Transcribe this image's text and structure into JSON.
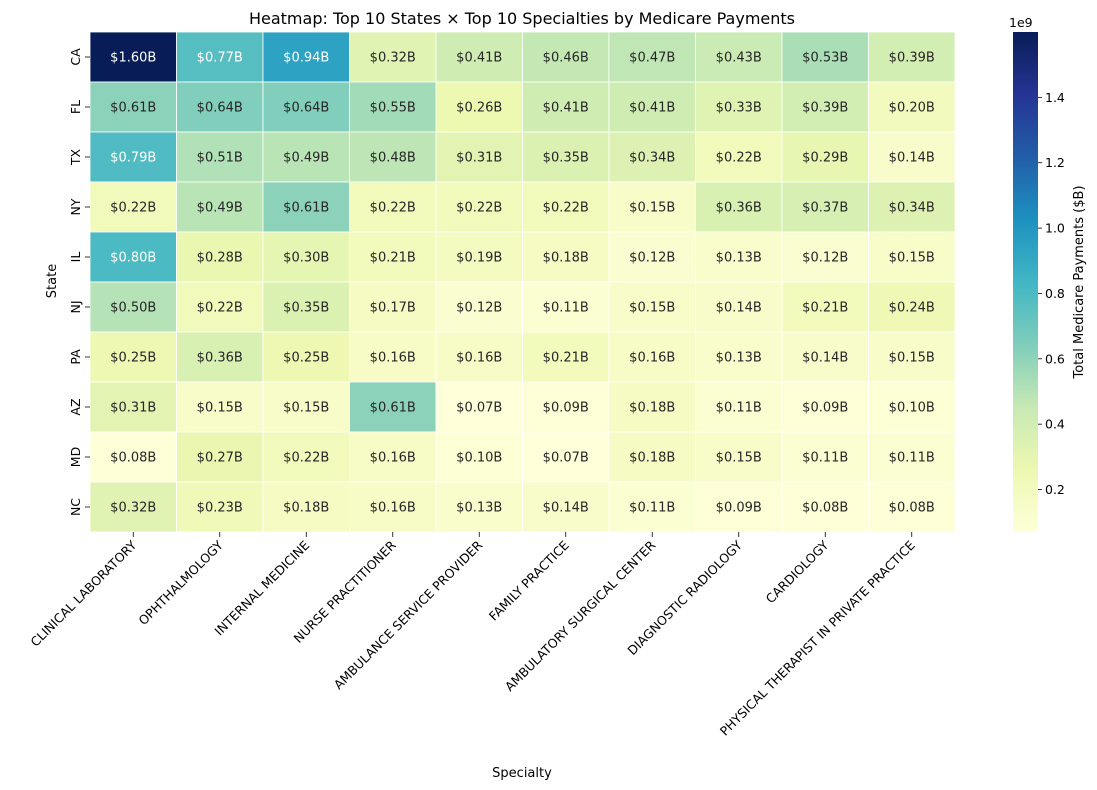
{
  "chart_data": {
    "type": "heatmap",
    "title": "Heatmap: Top 10 States × Top 10 Specialties by Medicare Payments",
    "xlabel": "Specialty",
    "ylabel": "State",
    "colorbar_label": "Total Medicare Payments ($B)",
    "colorbar_offset": "1e9",
    "colorbar_ticks": [
      0.2,
      0.4,
      0.6,
      0.8,
      1.0,
      1.2,
      1.4
    ],
    "colorbar_tick_labels": [
      "0.2",
      "0.4",
      "0.6",
      "0.8",
      "1.0",
      "1.2",
      "1.4"
    ],
    "value_range": [
      0.07,
      1.6
    ],
    "colormap": "YlGnBu",
    "x_categories": [
      "CLINICAL LABORATORY",
      "OPHTHALMOLOGY",
      "INTERNAL MEDICINE",
      "NURSE PRACTITIONER",
      "AMBULANCE SERVICE PROVIDER",
      "FAMILY PRACTICE",
      "AMBULATORY SURGICAL CENTER",
      "DIAGNOSTIC RADIOLOGY",
      "CARDIOLOGY",
      "PHYSICAL THERAPIST IN PRIVATE PRACTICE"
    ],
    "y_categories": [
      "CA",
      "FL",
      "TX",
      "NY",
      "IL",
      "NJ",
      "PA",
      "AZ",
      "MD",
      "NC"
    ],
    "values": [
      [
        1.6,
        0.77,
        0.94,
        0.32,
        0.41,
        0.46,
        0.47,
        0.43,
        0.53,
        0.39
      ],
      [
        0.61,
        0.64,
        0.64,
        0.55,
        0.26,
        0.41,
        0.41,
        0.33,
        0.39,
        0.2
      ],
      [
        0.79,
        0.51,
        0.49,
        0.48,
        0.31,
        0.35,
        0.34,
        0.22,
        0.29,
        0.14
      ],
      [
        0.22,
        0.49,
        0.61,
        0.22,
        0.22,
        0.22,
        0.15,
        0.36,
        0.37,
        0.34
      ],
      [
        0.8,
        0.28,
        0.3,
        0.21,
        0.19,
        0.18,
        0.12,
        0.13,
        0.12,
        0.15
      ],
      [
        0.5,
        0.22,
        0.35,
        0.17,
        0.12,
        0.11,
        0.15,
        0.14,
        0.21,
        0.24
      ],
      [
        0.25,
        0.36,
        0.25,
        0.16,
        0.16,
        0.21,
        0.16,
        0.13,
        0.14,
        0.15
      ],
      [
        0.31,
        0.15,
        0.15,
        0.61,
        0.07,
        0.09,
        0.18,
        0.11,
        0.09,
        0.1
      ],
      [
        0.08,
        0.27,
        0.22,
        0.16,
        0.1,
        0.07,
        0.18,
        0.15,
        0.11,
        0.11
      ],
      [
        0.32,
        0.23,
        0.18,
        0.16,
        0.13,
        0.14,
        0.11,
        0.09,
        0.08,
        0.08
      ]
    ],
    "cell_labels": [
      [
        "$1.60B",
        "$0.77B",
        "$0.94B",
        "$0.32B",
        "$0.41B",
        "$0.46B",
        "$0.47B",
        "$0.43B",
        "$0.53B",
        "$0.39B"
      ],
      [
        "$0.61B",
        "$0.64B",
        "$0.64B",
        "$0.55B",
        "$0.26B",
        "$0.41B",
        "$0.41B",
        "$0.33B",
        "$0.39B",
        "$0.20B"
      ],
      [
        "$0.79B",
        "$0.51B",
        "$0.49B",
        "$0.48B",
        "$0.31B",
        "$0.35B",
        "$0.34B",
        "$0.22B",
        "$0.29B",
        "$0.14B"
      ],
      [
        "$0.22B",
        "$0.49B",
        "$0.61B",
        "$0.22B",
        "$0.22B",
        "$0.22B",
        "$0.15B",
        "$0.36B",
        "$0.37B",
        "$0.34B"
      ],
      [
        "$0.80B",
        "$0.28B",
        "$0.30B",
        "$0.21B",
        "$0.19B",
        "$0.18B",
        "$0.12B",
        "$0.13B",
        "$0.12B",
        "$0.15B"
      ],
      [
        "$0.50B",
        "$0.22B",
        "$0.35B",
        "$0.17B",
        "$0.12B",
        "$0.11B",
        "$0.15B",
        "$0.14B",
        "$0.21B",
        "$0.24B"
      ],
      [
        "$0.25B",
        "$0.36B",
        "$0.25B",
        "$0.16B",
        "$0.16B",
        "$0.21B",
        "$0.16B",
        "$0.13B",
        "$0.14B",
        "$0.15B"
      ],
      [
        "$0.31B",
        "$0.15B",
        "$0.15B",
        "$0.61B",
        "$0.07B",
        "$0.09B",
        "$0.18B",
        "$0.11B",
        "$0.09B",
        "$0.10B"
      ],
      [
        "$0.08B",
        "$0.27B",
        "$0.22B",
        "$0.16B",
        "$0.10B",
        "$0.07B",
        "$0.18B",
        "$0.15B",
        "$0.11B",
        "$0.11B"
      ],
      [
        "$0.32B",
        "$0.23B",
        "$0.18B",
        "$0.16B",
        "$0.13B",
        "$0.14B",
        "$0.11B",
        "$0.09B",
        "$0.08B",
        "$0.08B"
      ]
    ]
  }
}
